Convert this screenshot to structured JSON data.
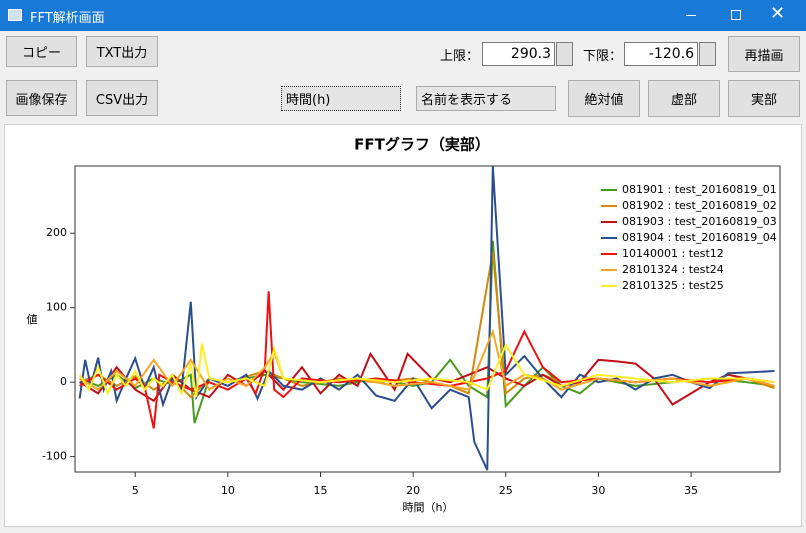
{
  "window": {
    "title": "FFT解析画面"
  },
  "toolbar": {
    "copy": "コピー",
    "txt": "TXT出力",
    "save_image": "画像保存",
    "csv": "CSV出力",
    "upper_label": "上限：",
    "lower_label": "下限：",
    "redraw": "再描画",
    "x_axis_select": "時間(h)",
    "name_select": "名前を表示する",
    "abs": "絶対値",
    "imag": "虚部",
    "real": "実部"
  },
  "chart_data": {
    "type": "line",
    "title": "FFTグラフ（実部）",
    "x_label": "時間（h）",
    "y_label": "値",
    "xlim": [
      1.75,
      39.8
    ],
    "ylim": [
      -120.6,
      290.3
    ],
    "xticks": [
      5,
      10,
      15,
      20,
      25,
      30,
      35
    ],
    "yticks": [
      -100,
      0,
      100,
      200
    ],
    "legend": "top-right",
    "series": [
      {
        "name": "081901 : test_20160819_01",
        "color": "#4a9a1c",
        "x": [
          2,
          3,
          4,
          5,
          6,
          7,
          8,
          8.2,
          9,
          10,
          12,
          14,
          16,
          18,
          20,
          21,
          22,
          23,
          24,
          24.3,
          25,
          26,
          27,
          28,
          29,
          30,
          32,
          34,
          36,
          38,
          39.5
        ],
        "values": [
          5,
          -5,
          10,
          -8,
          5,
          -3,
          10,
          -55,
          5,
          0,
          10,
          0,
          -5,
          5,
          -5,
          0,
          30,
          -5,
          -20,
          190,
          -32,
          -5,
          20,
          -5,
          -15,
          5,
          -5,
          0,
          5,
          0,
          -5
        ]
      },
      {
        "name": "081902 : test_20160819_02",
        "color": "#d4880c",
        "x": [
          2,
          3,
          4,
          5,
          6,
          7,
          8,
          9,
          10,
          12,
          14,
          16,
          18,
          20,
          22,
          23,
          24.3,
          25,
          26,
          27,
          28,
          30,
          32,
          34,
          36,
          38,
          39.5
        ],
        "values": [
          0,
          10,
          -5,
          8,
          -10,
          5,
          -20,
          5,
          0,
          15,
          -5,
          5,
          0,
          5,
          -5,
          -15,
          175,
          -15,
          5,
          10,
          0,
          5,
          0,
          5,
          -5,
          5,
          -8
        ]
      },
      {
        "name": "081903 : test_20160819_03",
        "color": "#c0101a",
        "x": [
          2,
          3,
          4,
          5,
          6,
          7,
          8,
          9,
          10,
          11,
          12,
          13,
          14,
          15,
          16,
          17,
          17.7,
          19,
          19.7,
          21,
          22,
          23,
          24,
          25,
          26,
          27,
          28,
          29,
          30,
          31,
          32,
          33,
          34,
          35,
          36,
          37,
          38,
          39.5
        ],
        "values": [
          0,
          -15,
          20,
          -10,
          -25,
          10,
          -10,
          -20,
          10,
          -5,
          15,
          -10,
          20,
          -15,
          10,
          -5,
          38,
          -10,
          38,
          5,
          0,
          10,
          20,
          5,
          -5,
          10,
          -5,
          0,
          30,
          28,
          25,
          5,
          -30,
          -15,
          0,
          10,
          5,
          -5
        ]
      },
      {
        "name": "081904 : test_20160819_04",
        "color": "#2b4f8e",
        "x": [
          2,
          2.3,
          2.6,
          3,
          3.3,
          3.7,
          4,
          4.5,
          5,
          5.5,
          6,
          6.5,
          7,
          7.5,
          8,
          8.3,
          9,
          10,
          11,
          11.6,
          12.2,
          13,
          14,
          15,
          16,
          17,
          18,
          19,
          20,
          21,
          22,
          23,
          23.3,
          24,
          24.3,
          25,
          26,
          27,
          28,
          29,
          30,
          31,
          32,
          33,
          34,
          35,
          36,
          37,
          38,
          39.5
        ],
        "values": [
          -22,
          30,
          -5,
          33,
          -10,
          15,
          -25,
          5,
          32,
          -8,
          20,
          -30,
          5,
          -10,
          108,
          -20,
          5,
          -5,
          10,
          -22,
          15,
          -5,
          -10,
          5,
          -10,
          10,
          -18,
          -25,
          5,
          -35,
          -10,
          -20,
          -80,
          -118,
          290,
          10,
          35,
          5,
          -20,
          10,
          0,
          5,
          -10,
          5,
          10,
          0,
          -8,
          12,
          13,
          15
        ]
      },
      {
        "name": "10140001 : test12",
        "color": "#ee1111",
        "x": [
          2,
          3,
          4,
          5,
          5.5,
          6,
          6.3,
          7,
          8,
          9,
          10,
          11,
          11.5,
          12,
          12.2,
          12.5,
          13,
          14,
          16,
          18,
          20,
          22,
          24,
          25,
          26,
          27,
          28,
          30,
          32,
          34,
          36,
          38,
          39.5
        ],
        "values": [
          -5,
          10,
          -10,
          5,
          -5,
          -62,
          10,
          0,
          -10,
          0,
          -10,
          5,
          -15,
          20,
          122,
          -10,
          -20,
          5,
          0,
          5,
          0,
          -5,
          5,
          15,
          68,
          20,
          0,
          5,
          0,
          5,
          0,
          5,
          0
        ]
      },
      {
        "name": "28101324 : test24",
        "color": "#f5a623",
        "x": [
          2,
          3,
          4,
          5,
          6,
          7,
          8,
          9,
          10,
          11,
          12,
          12.5,
          13,
          15,
          17,
          19,
          21,
          23,
          24.3,
          25,
          26,
          27,
          28,
          30,
          32,
          34,
          36,
          38,
          39.5
        ],
        "values": [
          5,
          -10,
          15,
          -5,
          30,
          -5,
          30,
          -10,
          5,
          -5,
          20,
          40,
          5,
          0,
          5,
          -5,
          0,
          -10,
          68,
          -5,
          10,
          5,
          -10,
          5,
          0,
          5,
          -5,
          5,
          -5
        ]
      },
      {
        "name": "28101325 : test25",
        "color": "#ffee22",
        "x": [
          2,
          2.5,
          3,
          3.5,
          4,
          4.5,
          5,
          5.5,
          6,
          6.5,
          7,
          7.5,
          8,
          8.3,
          8.6,
          9,
          10,
          11,
          12,
          12.5,
          13,
          15,
          17,
          19,
          21,
          23,
          24,
          25,
          26,
          28,
          30,
          32,
          34,
          36,
          38,
          39.5
        ],
        "values": [
          10,
          -10,
          20,
          -15,
          10,
          -5,
          15,
          -10,
          5,
          -5,
          10,
          -15,
          25,
          -20,
          52,
          5,
          0,
          5,
          -5,
          45,
          5,
          0,
          5,
          0,
          5,
          0,
          -10,
          50,
          10,
          -5,
          10,
          5,
          0,
          5,
          5,
          0
        ]
      }
    ]
  }
}
